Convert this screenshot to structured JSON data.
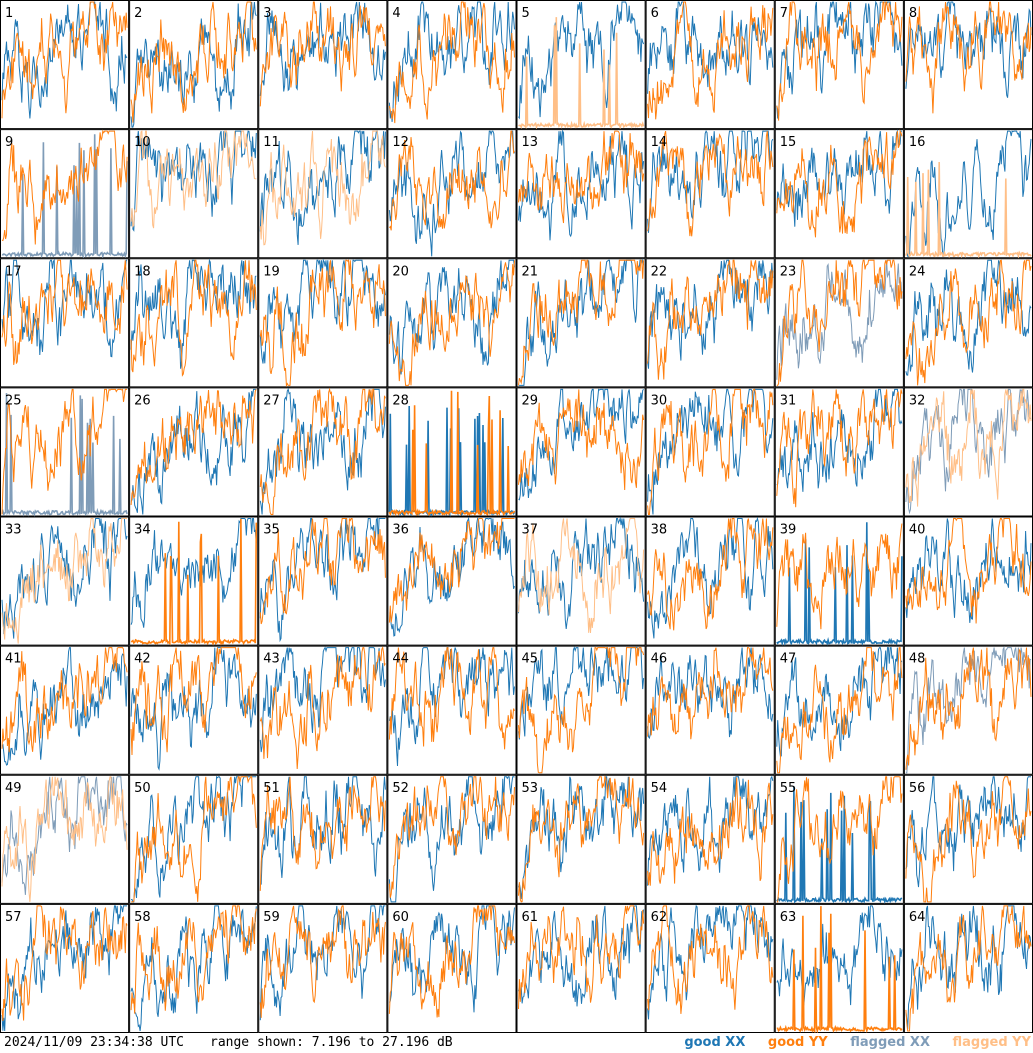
{
  "chart_data": {
    "type": "line",
    "layout": "grid",
    "panels_count": 64,
    "panel_labels": [
      "1",
      "2",
      "3",
      "4",
      "5",
      "6",
      "7",
      "8",
      "9",
      "10",
      "11",
      "12",
      "13",
      "14",
      "15",
      "16",
      "17",
      "18",
      "19",
      "20",
      "21",
      "22",
      "23",
      "24",
      "25",
      "26",
      "27",
      "28",
      "29",
      "30",
      "31",
      "32",
      "33",
      "34",
      "35",
      "36",
      "37",
      "38",
      "39",
      "40",
      "41",
      "42",
      "43",
      "44",
      "45",
      "46",
      "47",
      "48",
      "49",
      "50",
      "51",
      "52",
      "53",
      "54",
      "55",
      "56",
      "57",
      "58",
      "59",
      "60",
      "61",
      "62",
      "63",
      "64"
    ],
    "ylim": [
      7.196,
      27.196
    ],
    "units": "dB",
    "series_legend": [
      {
        "name": "good XX",
        "color": "#1f77b4"
      },
      {
        "name": "good YY",
        "color": "#ff7f0e"
      },
      {
        "name": "flagged XX",
        "color": "#7f9cb8"
      },
      {
        "name": "flagged YY",
        "color": "#ffbf87"
      }
    ],
    "timestamp": "2024/11/09 23:34:38 UTC",
    "range_text": "range shown: 7.196 to 27.196 dB",
    "panel_status": {
      "9": {
        "xx": "flagged",
        "yy": "good"
      },
      "10": {
        "xx": "good",
        "yy": "flagged"
      },
      "11": {
        "xx": "good",
        "yy": "flagged"
      },
      "16": {
        "xx": "good",
        "yy": "flagged"
      },
      "23": {
        "xx": "flagged",
        "yy": "good"
      },
      "25": {
        "xx": "flagged",
        "yy": "good"
      },
      "32": {
        "xx": "flagged",
        "yy": "flagged"
      },
      "33": {
        "xx": "good",
        "yy": "flagged"
      },
      "37": {
        "xx": "good",
        "yy": "flagged"
      },
      "48": {
        "xx": "flagged",
        "yy": "good"
      },
      "49": {
        "xx": "flagged",
        "yy": "flagged"
      },
      "5": {
        "xx": "good",
        "yy": "flagged"
      }
    }
  },
  "footer": {
    "timestamp": "2024/11/09 23:34:38 UTC",
    "range": "range shown: 7.196 to 27.196 dB",
    "legend": {
      "good_xx": "good XX",
      "good_yy": "good YY",
      "flagged_xx": "flagged XX",
      "flagged_yy": "flagged YY"
    }
  },
  "colors": {
    "good_xx": "#1f77b4",
    "good_yy": "#ff7f0e",
    "flagged_xx": "#7f9cb8",
    "flagged_yy": "#ffbf87"
  }
}
